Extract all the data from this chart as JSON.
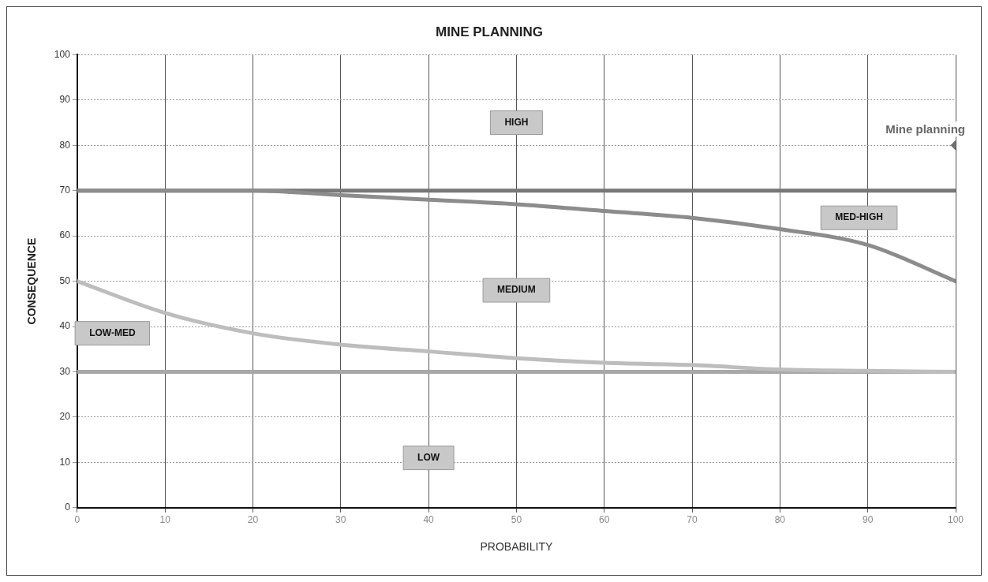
{
  "chart_data": {
    "type": "line",
    "title": "MINE PLANNING",
    "xlabel": "PROBABILITY",
    "ylabel": "CONSEQUENCE",
    "xlim": [
      0,
      100
    ],
    "xticks": [
      0,
      10,
      20,
      30,
      40,
      50,
      60,
      70,
      80,
      90,
      100
    ],
    "ylim": [
      0,
      100
    ],
    "yticks": [
      0,
      10,
      20,
      30,
      40,
      50,
      60,
      70,
      80,
      90,
      100
    ],
    "grid": true,
    "marker": "none",
    "ref_lines": [
      {
        "axis": "y",
        "value": 70,
        "color": "#777777"
      },
      {
        "axis": "y",
        "value": 30,
        "color": "#a8a8a8"
      }
    ],
    "series": [
      {
        "color": "#8c8c8c",
        "x": [
          0,
          10,
          20,
          30,
          40,
          50,
          60,
          70,
          80,
          90,
          100
        ],
        "values": [
          70,
          70,
          70,
          69,
          68,
          67,
          65.5,
          64,
          61.5,
          58,
          50
        ]
      },
      {
        "color": "#bdbdbd",
        "x": [
          0,
          10,
          20,
          30,
          40,
          50,
          60,
          70,
          80,
          90,
          100
        ],
        "values": [
          50,
          43,
          38.5,
          36,
          34.5,
          33,
          32,
          31.5,
          30.5,
          30.2,
          30
        ]
      },
      {
        "type": "scatter",
        "name": "Mine planning",
        "marker": "diamond",
        "color": "#707070",
        "x": [
          100
        ],
        "values": [
          80
        ]
      }
    ],
    "annotations": [
      "HIGH",
      "MED-HIGH",
      "MEDIUM",
      "LOW-MED",
      "LOW"
    ]
  }
}
